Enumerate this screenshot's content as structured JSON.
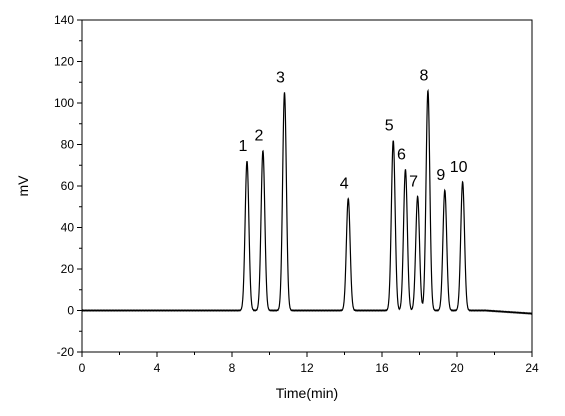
{
  "chart_data": {
    "type": "line",
    "title": "",
    "xlabel": "Time(min)",
    "ylabel": "mV",
    "xlim": [
      0,
      24
    ],
    "ylim": [
      -20,
      140
    ],
    "x_ticks": [
      0,
      4,
      8,
      12,
      16,
      20,
      24
    ],
    "y_ticks": [
      -20,
      0,
      20,
      40,
      60,
      80,
      100,
      120,
      140
    ],
    "grid": false,
    "legend": "none",
    "line_color": "#000000",
    "baseline": 0,
    "peaks": [
      {
        "label": "1",
        "time": 8.8,
        "height": 72
      },
      {
        "label": "2",
        "time": 9.65,
        "height": 77
      },
      {
        "label": "3",
        "time": 10.8,
        "height": 105
      },
      {
        "label": "4",
        "time": 14.2,
        "height": 54
      },
      {
        "label": "5",
        "time": 16.6,
        "height": 82
      },
      {
        "label": "6",
        "time": 17.25,
        "height": 68
      },
      {
        "label": "7",
        "time": 17.9,
        "height": 55
      },
      {
        "label": "8",
        "time": 18.45,
        "height": 106
      },
      {
        "label": "9",
        "time": 19.35,
        "height": 58
      },
      {
        "label": "10",
        "time": 20.3,
        "height": 62
      }
    ]
  }
}
